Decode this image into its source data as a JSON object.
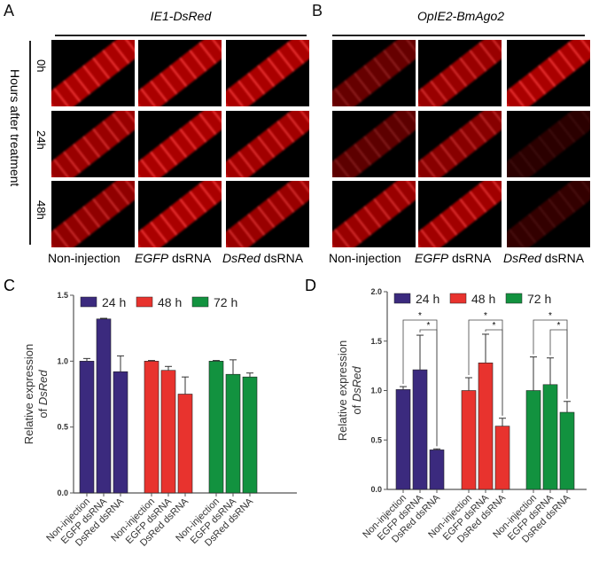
{
  "panels": {
    "a": "A",
    "b": "B",
    "c": "C",
    "d": "D"
  },
  "panel_a": {
    "title": "IE1-DsRed"
  },
  "panel_b": {
    "title": "OpIE2-BmAgo2"
  },
  "y_axis_label": "Hours after treatment",
  "rows": [
    "0h",
    "24h",
    "48h"
  ],
  "columns": [
    {
      "italic": "",
      "plain": "Non-injection"
    },
    {
      "italic": "EGFP",
      "plain": " dsRNA"
    },
    {
      "italic": "DsRed",
      "plain": " dsRNA"
    }
  ],
  "intensity_a": [
    [
      1,
      1,
      1
    ],
    [
      0.9,
      1,
      0.95
    ],
    [
      0.85,
      1,
      0.9
    ]
  ],
  "intensity_b": [
    [
      0.6,
      0.9,
      1
    ],
    [
      0.55,
      0.8,
      0.25
    ],
    [
      0.9,
      0.95,
      0.3
    ]
  ],
  "chart_data": [
    {
      "type": "bar",
      "panel": "C",
      "ylabel_line1": "Relative expression",
      "ylabel_line2_prefix": "of ",
      "ylabel_line2_italic": "DsRed",
      "ylim": [
        0,
        1.5
      ],
      "yticks": [
        "0.0",
        "0.5",
        "1.0",
        "1.5"
      ],
      "ytick_values": [
        0,
        0.5,
        1.0,
        1.5
      ],
      "categories": [
        "Non-injection",
        "EGFP dsRNA",
        "DsRed dsRNA"
      ],
      "series": [
        {
          "name": "24 h",
          "color": "#3b2a7e",
          "values": [
            1.0,
            1.32,
            0.92
          ],
          "errors": [
            0.02,
            0.005,
            0.12
          ]
        },
        {
          "name": "48 h",
          "color": "#e8332e",
          "values": [
            1.0,
            0.93,
            0.75
          ],
          "errors": [
            0.005,
            0.03,
            0.13
          ]
        },
        {
          "name": "72 h",
          "color": "#12923f",
          "values": [
            1.0,
            0.9,
            0.88
          ],
          "errors": [
            0.005,
            0.11,
            0.03
          ]
        }
      ],
      "significance": []
    },
    {
      "type": "bar",
      "panel": "D",
      "ylabel_line1": "Relative expression",
      "ylabel_line2_prefix": "of ",
      "ylabel_line2_italic": "DsRed",
      "ylim": [
        0,
        2.0
      ],
      "yticks": [
        "0.0",
        "0.5",
        "1.0",
        "1.5",
        "2.0"
      ],
      "ytick_values": [
        0,
        0.5,
        1.0,
        1.5,
        2.0
      ],
      "categories": [
        "Non-injection",
        "EGFP dsRNA",
        "DsRed dsRNA"
      ],
      "series": [
        {
          "name": "24 h",
          "color": "#3b2a7e",
          "values": [
            1.01,
            1.21,
            0.4
          ],
          "errors": [
            0.03,
            0.35,
            0.01
          ]
        },
        {
          "name": "48 h",
          "color": "#e8332e",
          "values": [
            1.0,
            1.28,
            0.64
          ],
          "errors": [
            0.13,
            0.29,
            0.08
          ]
        },
        {
          "name": "72 h",
          "color": "#12923f",
          "values": [
            1.0,
            1.06,
            0.78
          ],
          "errors": [
            0.34,
            0.27,
            0.11
          ]
        }
      ],
      "significance": [
        {
          "from": 0,
          "to": 2,
          "label": "*"
        },
        {
          "from": 1,
          "to": 2,
          "label": "*"
        }
      ]
    }
  ]
}
